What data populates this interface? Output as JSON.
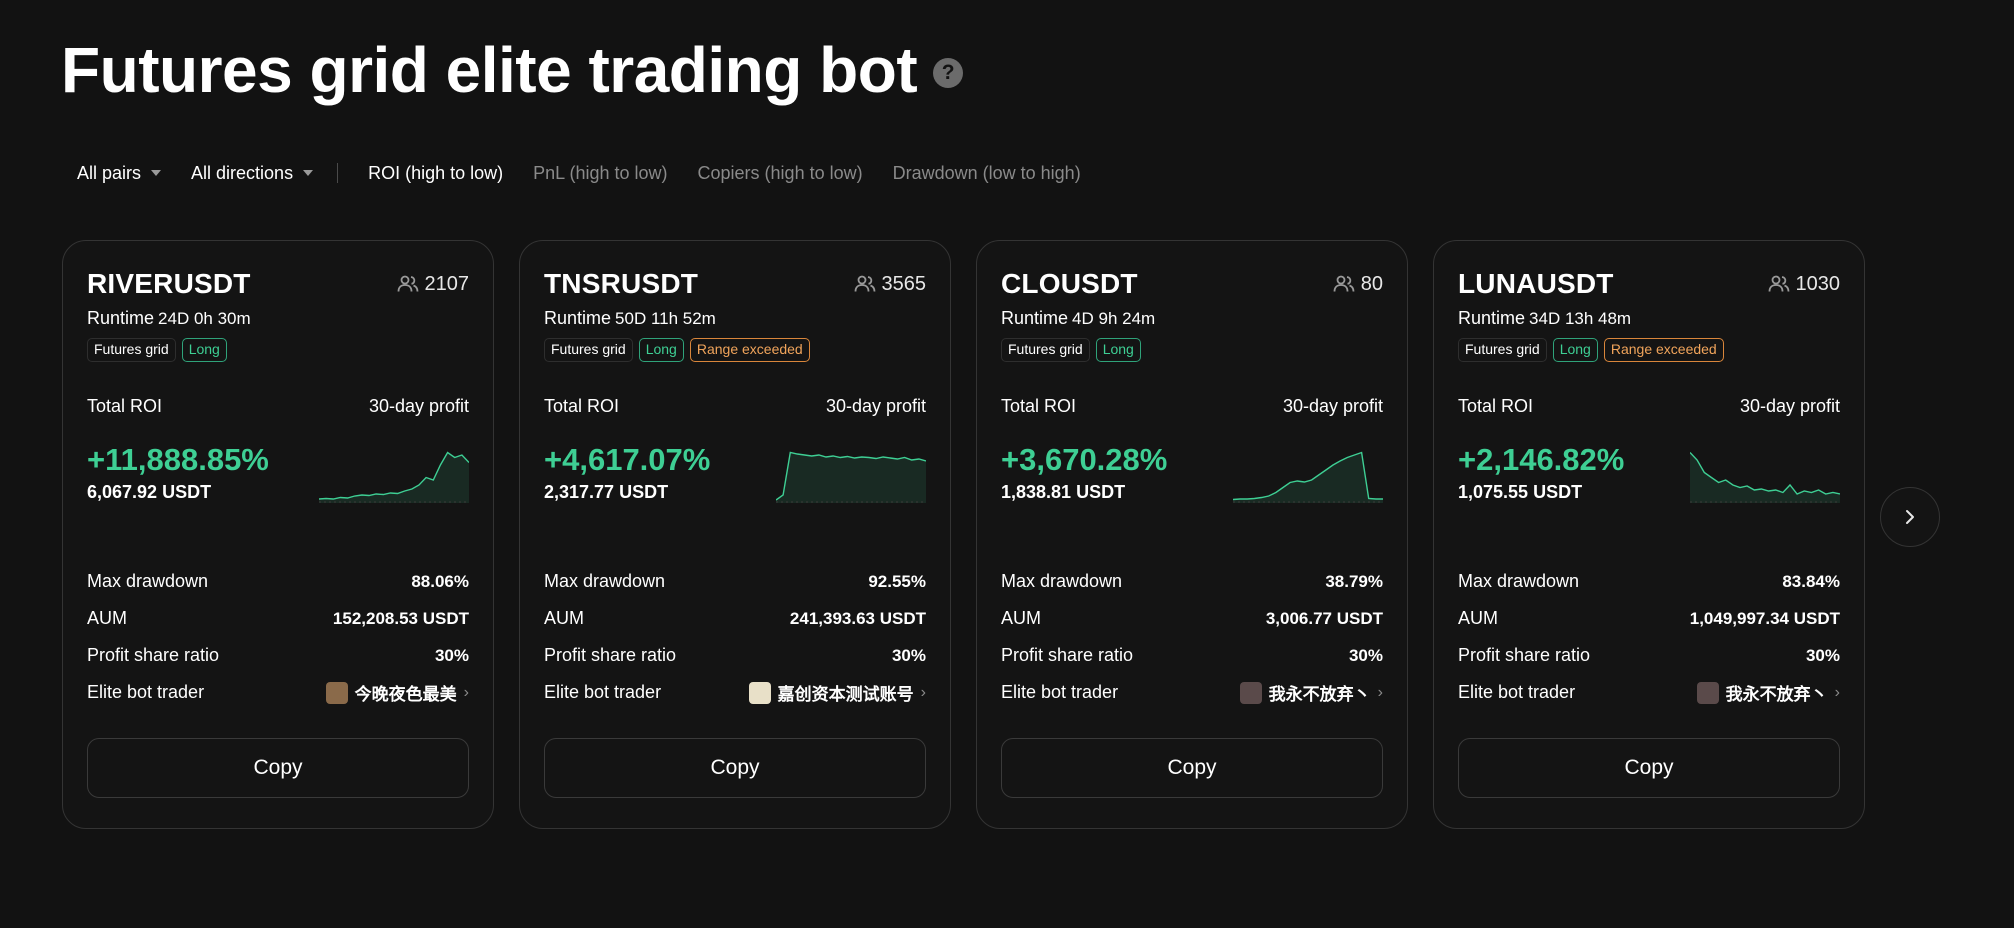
{
  "page": {
    "title": "Futures grid elite trading bot",
    "help_icon": "question-circle-icon"
  },
  "filters": {
    "pairs_label": "All pairs",
    "directions_label": "All directions",
    "sort_options": [
      {
        "label": "ROI (high to low)",
        "active": true
      },
      {
        "label": "PnL (high to low)",
        "active": false
      },
      {
        "label": "Copiers (high to low)",
        "active": false
      },
      {
        "label": "Drawdown (low to high)",
        "active": false
      }
    ]
  },
  "labels": {
    "runtime": "Runtime",
    "total_roi": "Total ROI",
    "profit_30d": "30-day profit",
    "max_drawdown": "Max drawdown",
    "aum": "AUM",
    "profit_share_ratio": "Profit share ratio",
    "elite_bot_trader": "Elite bot trader",
    "copy": "Copy"
  },
  "colors": {
    "positive": "#3ecf94",
    "range_exceeded": "#f0a45b",
    "background": "#121212"
  },
  "cards": [
    {
      "pair": "RIVERUSDT",
      "copiers": "2107",
      "runtime": "24D 0h 30m",
      "tags": [
        {
          "label": "Futures grid",
          "kind": "type"
        },
        {
          "label": "Long",
          "kind": "long"
        }
      ],
      "total_roi": "+11,888.85%",
      "total_roi_usdt": "6,067.92 USDT",
      "max_drawdown": "88.06%",
      "aum": "152,208.53 USDT",
      "profit_share_ratio": "30%",
      "trader_name": "今晚夜色最美",
      "trader_avatar_color": "#8a6a4a",
      "spark": [
        0.02,
        0.03,
        0.02,
        0.05,
        0.04,
        0.08,
        0.1,
        0.09,
        0.12,
        0.11,
        0.14,
        0.13,
        0.18,
        0.22,
        0.3,
        0.45,
        0.4,
        0.7,
        0.95,
        0.85,
        0.9,
        0.75
      ]
    },
    {
      "pair": "TNSRUSDT",
      "copiers": "3565",
      "runtime": "50D 11h 52m",
      "tags": [
        {
          "label": "Futures grid",
          "kind": "type"
        },
        {
          "label": "Long",
          "kind": "long"
        },
        {
          "label": "Range exceeded",
          "kind": "range"
        }
      ],
      "total_roi": "+4,617.07%",
      "total_roi_usdt": "2,317.77 USDT",
      "max_drawdown": "92.55%",
      "aum": "241,393.63 USDT",
      "profit_share_ratio": "30%",
      "trader_name": "嘉创资本测试账号",
      "trader_avatar_color": "#e8e0c8",
      "spark": [
        0.0,
        0.1,
        0.95,
        0.92,
        0.9,
        0.88,
        0.9,
        0.86,
        0.88,
        0.85,
        0.87,
        0.84,
        0.86,
        0.85,
        0.83,
        0.86,
        0.84,
        0.82,
        0.85,
        0.8,
        0.82,
        0.78
      ]
    },
    {
      "pair": "CLOUSDT",
      "copiers": "80",
      "runtime": "4D 9h 24m",
      "tags": [
        {
          "label": "Futures grid",
          "kind": "type"
        },
        {
          "label": "Long",
          "kind": "long"
        }
      ],
      "total_roi": "+3,670.28%",
      "total_roi_usdt": "1,838.81 USDT",
      "max_drawdown": "38.79%",
      "aum": "3,006.77 USDT",
      "profit_share_ratio": "30%",
      "trader_name": "我永不放弃丶",
      "trader_avatar_color": "#5a4a4a",
      "spark": [
        0.01,
        0.02,
        0.02,
        0.03,
        0.05,
        0.08,
        0.15,
        0.25,
        0.35,
        0.38,
        0.36,
        0.4,
        0.5,
        0.6,
        0.7,
        0.78,
        0.85,
        0.9,
        0.95,
        0.03,
        0.02,
        0.02
      ]
    },
    {
      "pair": "LUNAUSDT",
      "copiers": "1030",
      "runtime": "34D 13h 48m",
      "tags": [
        {
          "label": "Futures grid",
          "kind": "type"
        },
        {
          "label": "Long",
          "kind": "long"
        },
        {
          "label": "Range exceeded",
          "kind": "range"
        }
      ],
      "total_roi": "+2,146.82%",
      "total_roi_usdt": "1,075.55 USDT",
      "max_drawdown": "83.84%",
      "aum": "1,049,997.34 USDT",
      "profit_share_ratio": "30%",
      "trader_name": "我永不放弃丶",
      "trader_avatar_color": "#5a4a4a",
      "spark": [
        0.95,
        0.8,
        0.55,
        0.45,
        0.35,
        0.4,
        0.3,
        0.25,
        0.28,
        0.2,
        0.22,
        0.18,
        0.2,
        0.15,
        0.3,
        0.12,
        0.18,
        0.15,
        0.2,
        0.12,
        0.15,
        0.12
      ]
    }
  ],
  "pager": {
    "next_icon": "chevron-right-icon"
  }
}
